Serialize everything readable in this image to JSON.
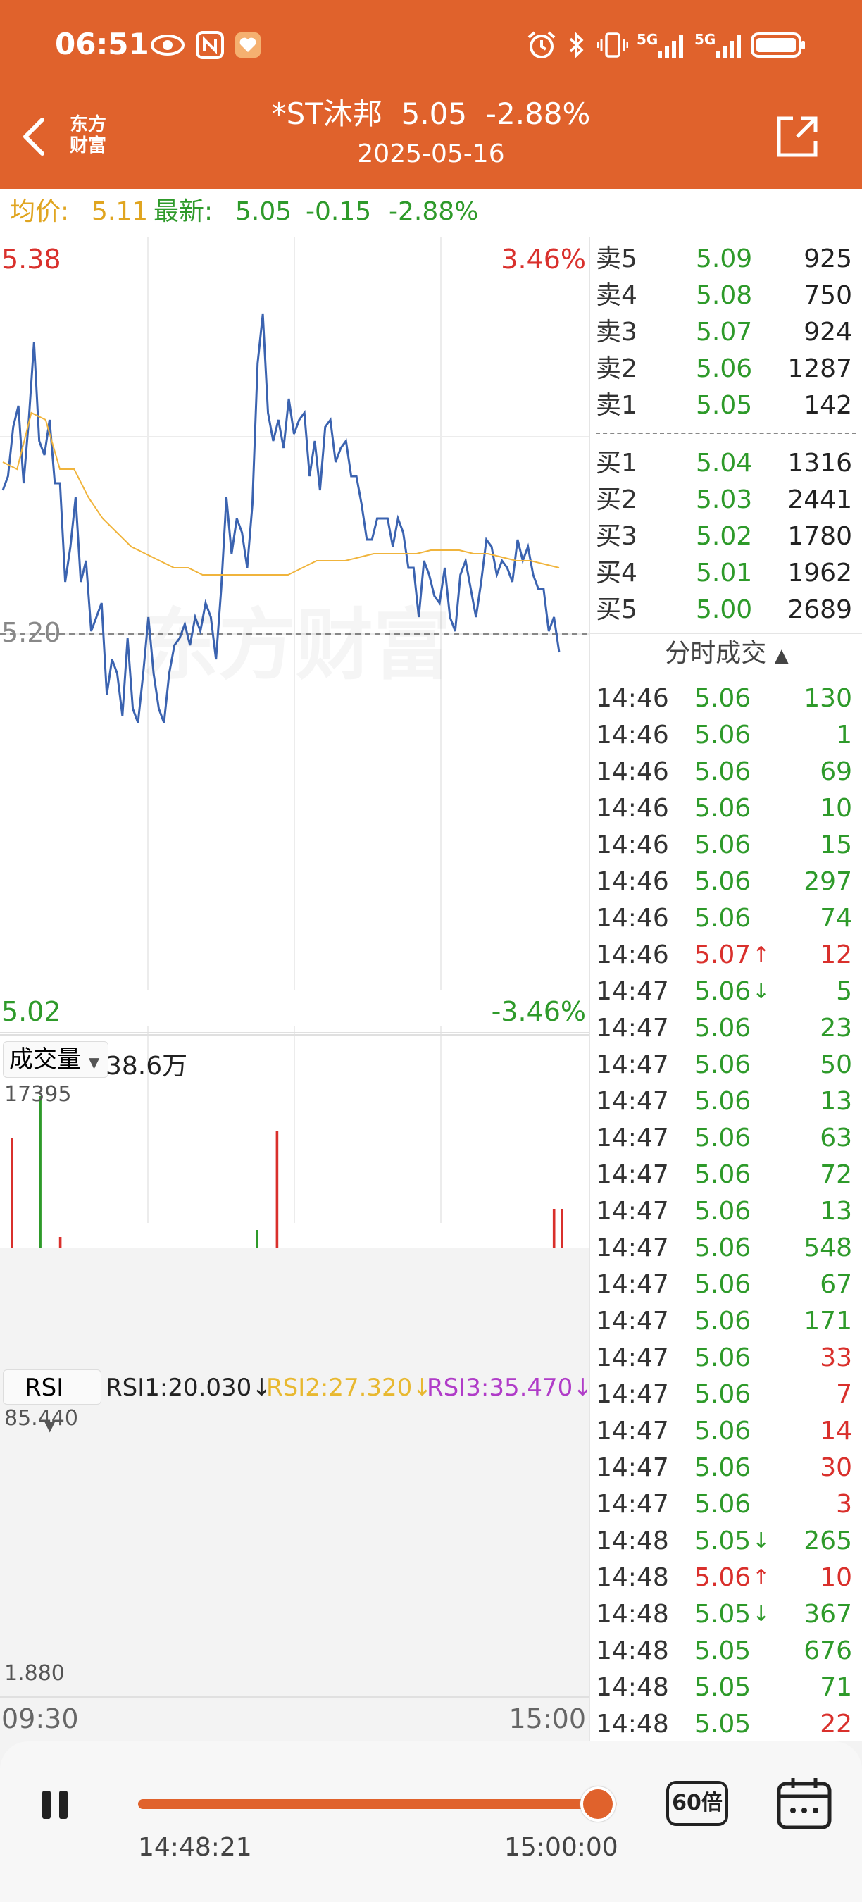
{
  "status_bar": {
    "time": "06:51",
    "icons": [
      "eye-icon",
      "nfc-icon",
      "heart-shield-icon",
      "alarm-icon",
      "bluetooth-icon",
      "vibrate-icon",
      "signal-5g-icon",
      "signal-5g-icon",
      "battery-icon"
    ],
    "net1": "5G",
    "net2": "5G"
  },
  "header": {
    "title": "*ST沐邦  5.05  -2.88%",
    "date": "2025-05-16",
    "logo_text_1": "东方",
    "logo_text_2": "财富"
  },
  "info": {
    "avg_label": "均价:",
    "avg_value": "5.11",
    "latest_label": "最新:",
    "latest_value": "5.05",
    "change": "-0.15",
    "change_pct": "-2.88%"
  },
  "price_chart": {
    "high": "5.38",
    "high_pct": "3.46%",
    "low": "5.02",
    "low_pct": "-3.46%",
    "ref": "5.20",
    "watermark": "东方财富"
  },
  "volume_chart": {
    "selector": "成交量",
    "total": "38.6万",
    "max": "17395"
  },
  "rsi_chart": {
    "selector": "RSI",
    "rsi1": "RSI1:20.030",
    "rsi2": "RSI2:27.320",
    "rsi3": "RSI3:35.470",
    "max": "85.440",
    "min": "1.880"
  },
  "time_axis": {
    "start": "09:30",
    "end": "15:00"
  },
  "order_book": {
    "asks": [
      {
        "label": "卖5",
        "price": "5.09",
        "vol": "925"
      },
      {
        "label": "卖4",
        "price": "5.08",
        "vol": "750"
      },
      {
        "label": "卖3",
        "price": "5.07",
        "vol": "924"
      },
      {
        "label": "卖2",
        "price": "5.06",
        "vol": "1287"
      },
      {
        "label": "卖1",
        "price": "5.05",
        "vol": "142"
      }
    ],
    "bids": [
      {
        "label": "买1",
        "price": "5.04",
        "vol": "1316"
      },
      {
        "label": "买2",
        "price": "5.03",
        "vol": "2441"
      },
      {
        "label": "买3",
        "price": "5.02",
        "vol": "1780"
      },
      {
        "label": "买4",
        "price": "5.01",
        "vol": "1962"
      },
      {
        "label": "买5",
        "price": "5.00",
        "vol": "2689"
      }
    ]
  },
  "trades": {
    "header": "分时成交",
    "rows": [
      {
        "time": "14:46",
        "price": "5.06",
        "arrow": "",
        "vol": "130",
        "color": "g"
      },
      {
        "time": "14:46",
        "price": "5.06",
        "arrow": "",
        "vol": "1",
        "color": "g"
      },
      {
        "time": "14:46",
        "price": "5.06",
        "arrow": "",
        "vol": "69",
        "color": "g"
      },
      {
        "time": "14:46",
        "price": "5.06",
        "arrow": "",
        "vol": "10",
        "color": "g"
      },
      {
        "time": "14:46",
        "price": "5.06",
        "arrow": "",
        "vol": "15",
        "color": "g"
      },
      {
        "time": "14:46",
        "price": "5.06",
        "arrow": "",
        "vol": "297",
        "color": "g"
      },
      {
        "time": "14:46",
        "price": "5.06",
        "arrow": "",
        "vol": "74",
        "color": "g"
      },
      {
        "time": "14:46",
        "price": "5.07",
        "arrow": "↑",
        "vol": "12",
        "color": "r"
      },
      {
        "time": "14:47",
        "price": "5.06",
        "arrow": "↓",
        "vol": "5",
        "color": "g"
      },
      {
        "time": "14:47",
        "price": "5.06",
        "arrow": "",
        "vol": "23",
        "color": "g"
      },
      {
        "time": "14:47",
        "price": "5.06",
        "arrow": "",
        "vol": "50",
        "color": "g"
      },
      {
        "time": "14:47",
        "price": "5.06",
        "arrow": "",
        "vol": "13",
        "color": "g"
      },
      {
        "time": "14:47",
        "price": "5.06",
        "arrow": "",
        "vol": "63",
        "color": "g"
      },
      {
        "time": "14:47",
        "price": "5.06",
        "arrow": "",
        "vol": "72",
        "color": "g"
      },
      {
        "time": "14:47",
        "price": "5.06",
        "arrow": "",
        "vol": "13",
        "color": "g"
      },
      {
        "time": "14:47",
        "price": "5.06",
        "arrow": "",
        "vol": "548",
        "color": "g"
      },
      {
        "time": "14:47",
        "price": "5.06",
        "arrow": "",
        "vol": "67",
        "color": "g"
      },
      {
        "time": "14:47",
        "price": "5.06",
        "arrow": "",
        "vol": "171",
        "color": "g"
      },
      {
        "time": "14:47",
        "price": "5.06",
        "arrow": "",
        "vol": "33",
        "color": "r"
      },
      {
        "time": "14:47",
        "price": "5.06",
        "arrow": "",
        "vol": "7",
        "color": "r"
      },
      {
        "time": "14:47",
        "price": "5.06",
        "arrow": "",
        "vol": "14",
        "color": "r"
      },
      {
        "time": "14:47",
        "price": "5.06",
        "arrow": "",
        "vol": "30",
        "color": "r"
      },
      {
        "time": "14:47",
        "price": "5.06",
        "arrow": "",
        "vol": "3",
        "color": "r"
      },
      {
        "time": "14:48",
        "price": "5.05",
        "arrow": "↓",
        "vol": "265",
        "color": "g"
      },
      {
        "time": "14:48",
        "price": "5.06",
        "arrow": "↑",
        "vol": "10",
        "color": "r"
      },
      {
        "time": "14:48",
        "price": "5.05",
        "arrow": "↓",
        "vol": "367",
        "color": "g"
      },
      {
        "time": "14:48",
        "price": "5.05",
        "arrow": "",
        "vol": "676",
        "color": "g"
      },
      {
        "time": "14:48",
        "price": "5.05",
        "arrow": "",
        "vol": "71",
        "color": "g"
      },
      {
        "time": "14:48",
        "price": "5.05",
        "arrow": "",
        "vol": "22",
        "color": "r"
      }
    ]
  },
  "playback": {
    "current_time": "14:48:21",
    "end_time": "15:00:00",
    "speed": "60倍",
    "progress": 0.96
  },
  "colors": {
    "accent": "#e0622c",
    "up": "#d9302c",
    "down": "#2e9a2a",
    "price_line": "#3b63b0",
    "avg_line": "#f0b43c",
    "rsi3": "#b03cc8"
  }
}
